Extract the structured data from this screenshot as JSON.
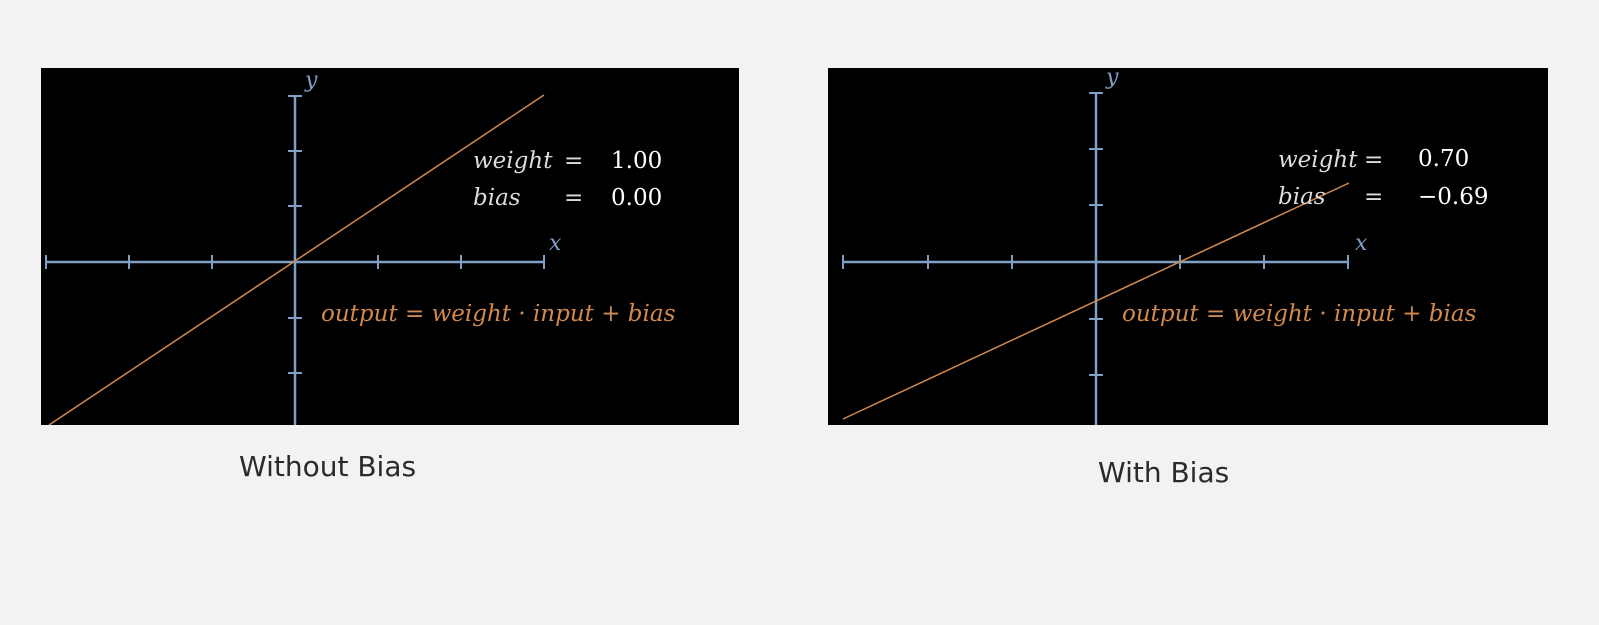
{
  "colors": {
    "axis": "#7f9fc4",
    "line": "#d2894e",
    "panel_bg": "#000000",
    "page_bg": "#f2f2f2",
    "text": "#dcdcdc"
  },
  "panels": [
    {
      "caption": "Without Bias",
      "x_axis_label": "x",
      "y_axis_label": "y",
      "weight_label": "weight",
      "weight_eq": "=",
      "weight_value": "1.00",
      "bias_label": "bias",
      "bias_eq": "=",
      "bias_value": "0.00",
      "formula": "output = weight · input + bias",
      "weight": 1.0,
      "bias": 0.0
    },
    {
      "caption": "With Bias",
      "x_axis_label": "x",
      "y_axis_label": "y",
      "weight_label": "weight",
      "weight_eq": "=",
      "weight_value": "0.70",
      "bias_label": "bias",
      "bias_eq": "=",
      "bias_value": "−0.69",
      "formula": "output = weight · input + bias",
      "weight": 0.7,
      "bias": -0.69
    }
  ]
}
